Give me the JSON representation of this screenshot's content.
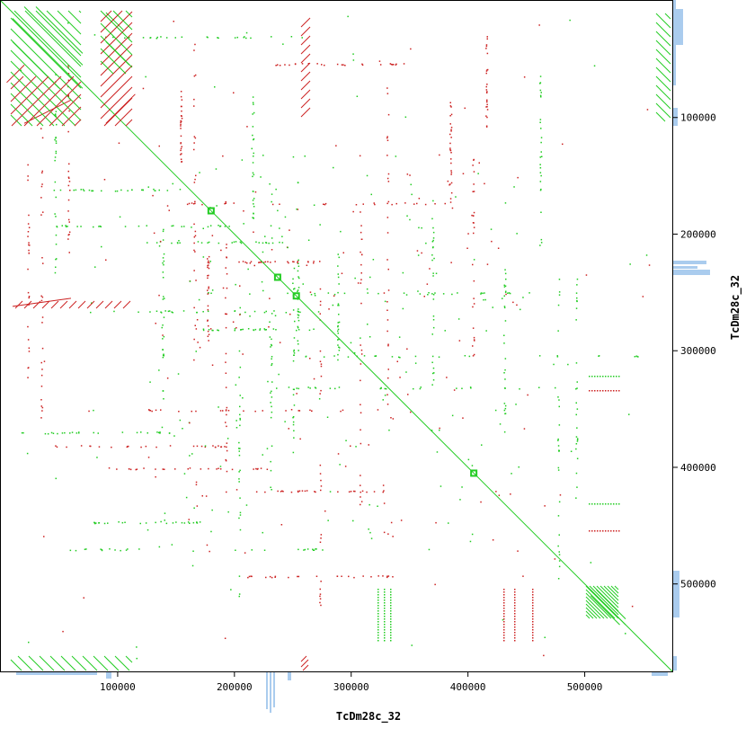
{
  "chart_data": {
    "type": "scatter",
    "title": "",
    "xlabel": "TcDm28c_32",
    "ylabel": "TcDm28c_32",
    "xlim": [
      0,
      575000
    ],
    "ylim": [
      0,
      575000
    ],
    "y_inverted": true,
    "x_ticks": [
      {
        "value": 100000,
        "label": "100000"
      },
      {
        "value": 200000,
        "label": "200000"
      },
      {
        "value": 300000,
        "label": "300000"
      },
      {
        "value": 400000,
        "label": "400000"
      },
      {
        "value": 500000,
        "label": "500000"
      }
    ],
    "y_ticks": [
      {
        "value": 100000,
        "label": "100000"
      },
      {
        "value": 200000,
        "label": "200000"
      },
      {
        "value": 300000,
        "label": "300000"
      },
      {
        "value": 400000,
        "label": "400000"
      },
      {
        "value": 500000,
        "label": "500000"
      }
    ],
    "colors": {
      "forward": "#22cc22",
      "reverse": "#cc2222",
      "coverage": "#aaccee",
      "frame": "#000000"
    },
    "series": [
      {
        "direction": "forward",
        "segments": [
          [
            0,
            0,
            575000,
            575000
          ]
        ]
      },
      {
        "direction": "forward",
        "segments": [
          [
            20000,
            5000,
            70000,
            55000
          ],
          [
            10000,
            15000,
            70000,
            75000
          ],
          [
            30000,
            5000,
            70000,
            45000
          ],
          [
            10000,
            35000,
            50000,
            75000
          ],
          [
            90000,
            10000,
            105000,
            25000
          ],
          [
            90000,
            35000,
            110000,
            55000
          ],
          [
            505000,
            505000,
            535000,
            535000
          ],
          [
            510000,
            505000,
            535000,
            530000
          ],
          [
            505000,
            510000,
            530000,
            535000
          ]
        ]
      },
      {
        "direction": "reverse",
        "segments": [
          [
            5000,
            70000,
            20000,
            55000
          ],
          [
            20000,
            105000,
            60000,
            85000
          ],
          [
            90000,
            105000,
            115000,
            80000
          ],
          [
            10000,
            262000,
            60000,
            255000
          ]
        ]
      }
    ],
    "highlights": [
      {
        "x": 180000,
        "y": 180000
      },
      {
        "x": 237000,
        "y": 237000
      },
      {
        "x": 253000,
        "y": 253000
      },
      {
        "x": 405000,
        "y": 405000
      }
    ]
  }
}
